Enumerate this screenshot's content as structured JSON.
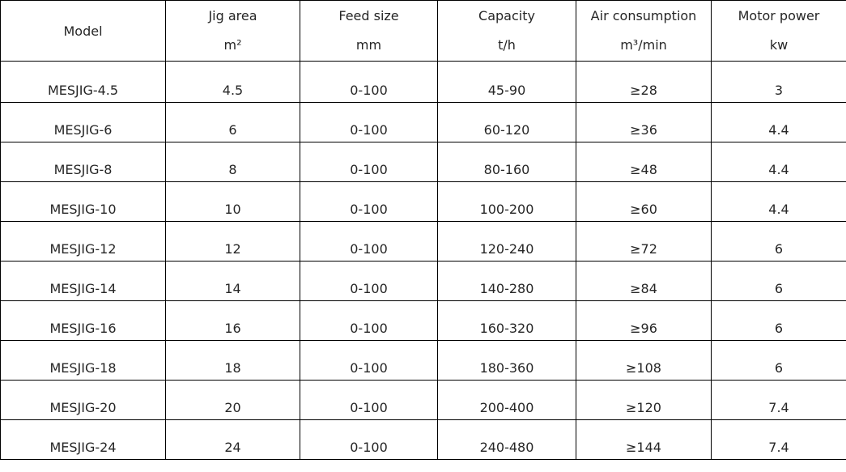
{
  "table": {
    "headers": [
      {
        "title": "Model",
        "unit": ""
      },
      {
        "title": "Jig area",
        "unit": "m²"
      },
      {
        "title": "Feed size",
        "unit": "mm"
      },
      {
        "title": "Capacity",
        "unit": "t/h"
      },
      {
        "title": "Air consumption",
        "unit": "m³/min"
      },
      {
        "title": "Motor power",
        "unit": "kw"
      }
    ],
    "rows": [
      [
        "MESJIG-4.5",
        "4.5",
        "0-100",
        "45-90",
        "≥28",
        "3"
      ],
      [
        "MESJIG-6",
        "6",
        "0-100",
        "60-120",
        "≥36",
        "4.4"
      ],
      [
        "MESJIG-8",
        "8",
        "0-100",
        "80-160",
        "≥48",
        "4.4"
      ],
      [
        "MESJIG-10",
        "10",
        "0-100",
        "100-200",
        "≥60",
        "4.4"
      ],
      [
        "MESJIG-12",
        "12",
        "0-100",
        "120-240",
        "≥72",
        "6"
      ],
      [
        "MESJIG-14",
        "14",
        "0-100",
        "140-280",
        "≥84",
        "6"
      ],
      [
        "MESJIG-16",
        "16",
        "0-100",
        "160-320",
        "≥96",
        "6"
      ],
      [
        "MESJIG-18",
        "18",
        "0-100",
        "180-360",
        "≥108",
        "6"
      ],
      [
        "MESJIG-20",
        "20",
        "0-100",
        "200-400",
        "≥120",
        "7.4"
      ],
      [
        "MESJIG-24",
        "24",
        "0-100",
        "240-480",
        "≥144",
        "7.4"
      ]
    ]
  }
}
